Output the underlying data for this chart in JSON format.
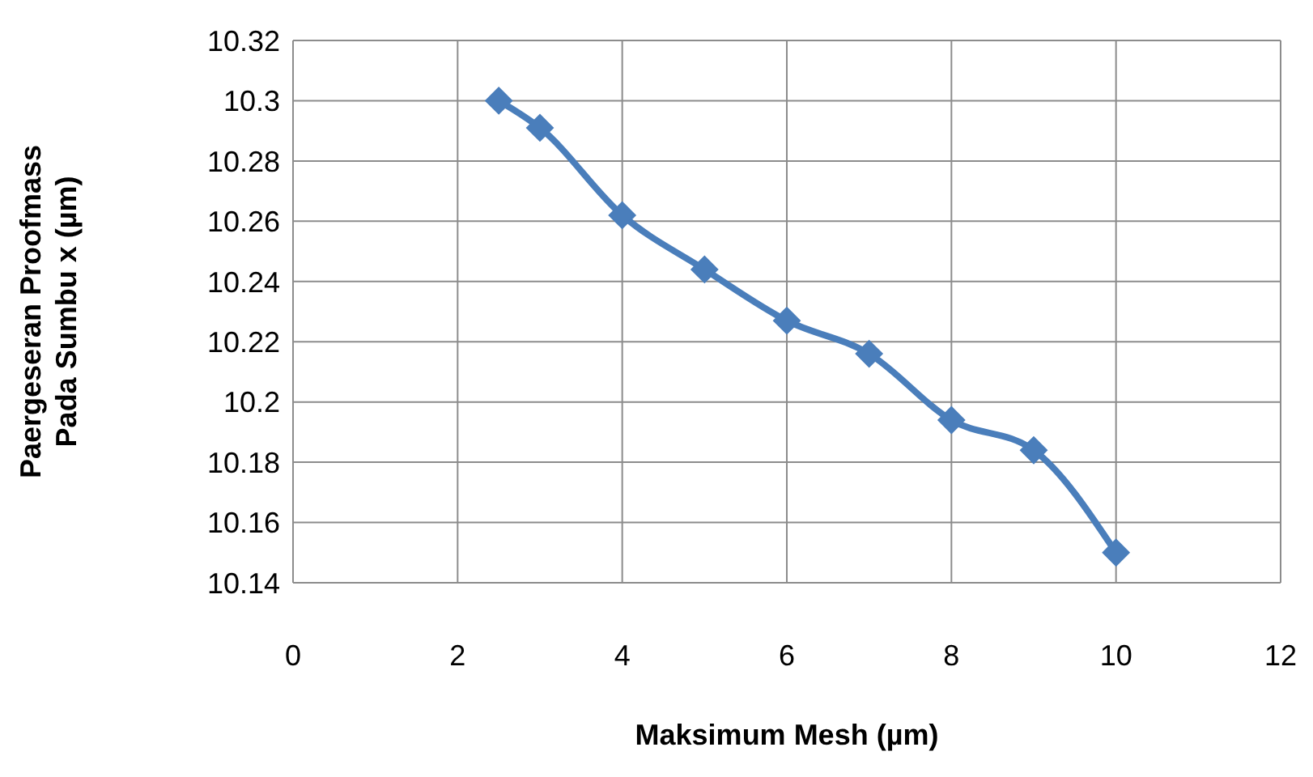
{
  "chart_data": {
    "type": "line",
    "xlabel": "Maksimum Mesh (µm)",
    "ylabel": "Paergeseran Proofmass\nPada Sumbu x (µm)",
    "x": [
      2.5,
      3,
      4,
      5,
      6,
      7,
      8,
      9,
      10
    ],
    "series": [
      {
        "color": "#4a7ebb",
        "values": [
          10.3,
          10.291,
          10.262,
          10.244,
          10.227,
          10.216,
          10.194,
          10.184,
          10.15
        ]
      }
    ],
    "xlim": [
      0,
      12
    ],
    "xticks": [
      0,
      2,
      4,
      6,
      8,
      10,
      12
    ],
    "ylim": [
      10.14,
      10.32
    ],
    "yticks": [
      10.14,
      10.16,
      10.18,
      10.2,
      10.22,
      10.24,
      10.26,
      10.28,
      10.3,
      10.32
    ],
    "grid": true,
    "marker": "diamond",
    "line_style": "solid",
    "legend": false
  }
}
